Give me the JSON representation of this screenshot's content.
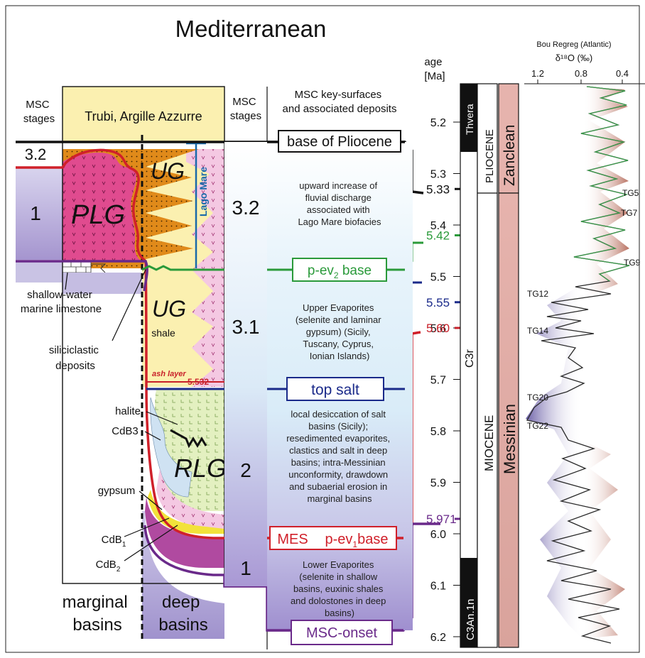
{
  "title": "Mediterranean",
  "left_panel": {
    "col_msc_stages": [
      "MSC",
      "stages"
    ],
    "col_trubi": "Trubi, Argille Azzurre",
    "col_msc_stages_2": [
      "MSC",
      "stages"
    ],
    "col_key_surfaces": [
      "MSC key-surfaces",
      "and associated deposits"
    ],
    "stage_3_2_left": "3.2",
    "stage_1_left": "1",
    "unit_plg": "PLG",
    "unit_ug_upper": "UG",
    "unit_ug_lower": "UG",
    "unit_ug_lower_sub": "shale",
    "unit_rlg": "RLG",
    "lago_mare": "Lago Mare",
    "ash_layer": "ash layer",
    "ash_age": "5.532",
    "labels": {
      "shallow_limestone": [
        "shallow-water",
        "marine limestone"
      ],
      "siliciclastic": [
        "siliciclastic",
        "deposits"
      ],
      "halite": "halite",
      "cdb3": "CdB3",
      "gypsum": "gypsum",
      "cdb1_base": "CdB",
      "cdb1_sub": "1",
      "cdb2_base": "CdB",
      "cdb2_sub": "2"
    },
    "basin_labels": {
      "marginal": [
        "marginal",
        "basins"
      ],
      "deep": [
        "deep",
        "basins"
      ]
    },
    "stages_right": [
      "3.2",
      "3.1",
      "2",
      "1"
    ]
  },
  "surfaces": {
    "base_pliocene": "base of Pliocene",
    "p_ev2_base_prefix": "p-ev",
    "p_ev2_base_sub": "2",
    "p_ev2_base_suffix": " base",
    "top_salt": "top salt",
    "mes": "MES",
    "p_ev1_prefix": "p-ev",
    "p_ev1_sub": "1",
    "p_ev1_suffix": "base",
    "msc_onset": "MSC-onset"
  },
  "descriptions": {
    "stage_3_2": [
      "upward increase of",
      "fluvial discharge",
      "associated with",
      "Lago Mare biofacies"
    ],
    "stage_3_1": [
      "Upper Evaporites",
      "(selenite and laminar",
      "gypsum) (Sicily,",
      "Tuscany, Cyprus,",
      "Ionian Islands)"
    ],
    "stage_2": [
      "local desiccation of salt",
      "basins (Sicily);",
      "resedimented evaporites,",
      "clastics and salt in deep",
      "basins; intra-Messinian",
      "unconformity, drawdown",
      "and subaerial erosion in",
      "marginal basins"
    ],
    "stage_1": [
      "Lower Evaporites",
      "(selenite in shallow",
      "basins, euxinic shales",
      "and dolostones in deep",
      "basins)"
    ]
  },
  "age_axis": {
    "title": [
      "age",
      "[Ma]"
    ],
    "ticks": [
      "5.2",
      "5.3",
      "5.4",
      "5.5",
      "5.6",
      "5.7",
      "5.8",
      "5.9",
      "6.0",
      "6.1",
      "6.2"
    ],
    "markers": [
      {
        "label": "5.33",
        "color": "#111111"
      },
      {
        "label": "5.42",
        "color": "#2a9a3a"
      },
      {
        "label": "5.55",
        "color": "#1a2a8a"
      },
      {
        "label": "5.60",
        "color": "#c8202a"
      },
      {
        "label": "5.971",
        "color": "#6a2a8a"
      }
    ]
  },
  "chrono": {
    "thvera": "Thvera",
    "c3r": "C3r",
    "c3an1n": "C3An.1n",
    "pliocene": "PLIOCENE",
    "miocene": "MIOCENE",
    "zanclean": "Zanclean",
    "messinian": "Messinian"
  },
  "isotope": {
    "title": "Bou Regreg (Atlantic)",
    "axis_label": "δ¹⁸O (‰)",
    "ticks": [
      "1.2",
      "0.8",
      "0.4"
    ],
    "tg_labels": [
      "TG5",
      "TG7",
      "TG9",
      "TG12",
      "TG14",
      "TG20",
      "TG22"
    ]
  },
  "colors": {
    "black_line": "#111111",
    "green_line": "#2a9a3a",
    "blue_line": "#1a2a8a",
    "red_line": "#d0202a",
    "purple_line": "#6a2a8a",
    "trubi_yellow": "#fbf0b0",
    "plg_pink": "#e04b8f",
    "ug_orange": "#e08a1a",
    "stage1_violet": "#b3a3d3",
    "rlg_green": "#e3f0c0",
    "messinian_bar": "#e6b3ad"
  }
}
